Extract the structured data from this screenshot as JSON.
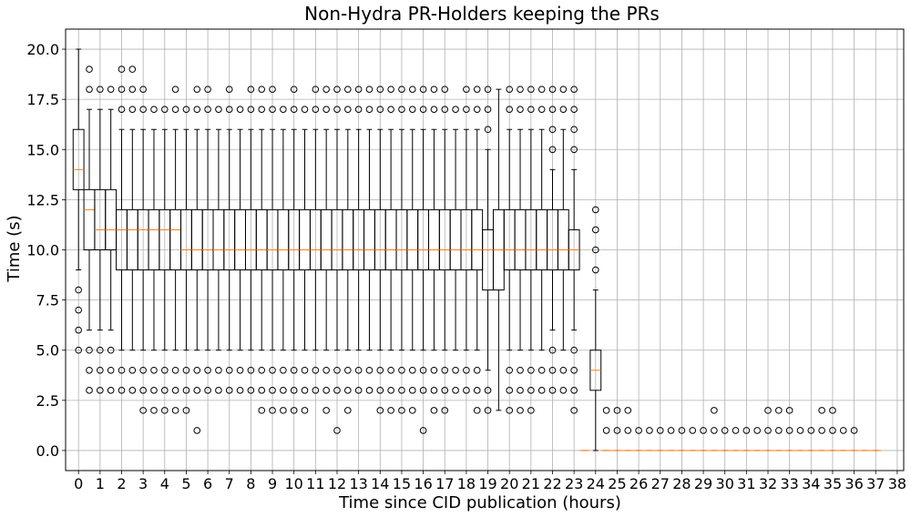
{
  "chart_data": {
    "type": "box",
    "title": "Non-Hydra PR-Holders keeping the PRs",
    "xlabel": "Time since CID publication (hours)",
    "ylabel": "Time (s)",
    "ylim": [
      -1,
      21
    ],
    "xlim": [
      -0.6,
      38.3
    ],
    "yticks": [
      0.0,
      2.5,
      5.0,
      7.5,
      10.0,
      12.5,
      15.0,
      17.5,
      20.0
    ],
    "ytick_labels": [
      "0.0",
      "2.5",
      "5.0",
      "7.5",
      "10.0",
      "12.5",
      "15.0",
      "17.5",
      "20.0"
    ],
    "xticks": [
      0,
      1,
      2,
      3,
      4,
      5,
      6,
      7,
      8,
      9,
      10,
      11,
      12,
      13,
      14,
      15,
      16,
      17,
      18,
      19,
      20,
      21,
      22,
      23,
      24,
      25,
      26,
      27,
      28,
      29,
      30,
      31,
      32,
      33,
      34,
      35,
      36,
      37,
      38
    ],
    "xtick_labels": [
      "0",
      "1",
      "2",
      "3",
      "4",
      "5",
      "6",
      "7",
      "8",
      "9",
      "10",
      "11",
      "12",
      "13",
      "14",
      "15",
      "16",
      "17",
      "18",
      "19",
      "20",
      "21",
      "22",
      "23",
      "24",
      "25",
      "26",
      "27",
      "28",
      "29",
      "30",
      "31",
      "32",
      "33",
      "34",
      "35",
      "36",
      "37",
      "38"
    ],
    "grid": true,
    "box_step_hours": 0.5,
    "colors": {
      "box": "#000000",
      "median": "#ff7f0e",
      "grid": "#b0b0b0",
      "flier": "#000000"
    },
    "boxes": [
      {
        "q1": 13,
        "median": 14,
        "q3": 16,
        "whislo": 9,
        "whishi": 20,
        "fliers": [
          8,
          7,
          6,
          5
        ]
      },
      {
        "q1": 10,
        "median": 12,
        "q3": 13,
        "whislo": 6,
        "whishi": 17,
        "fliers": [
          19,
          18,
          5,
          4,
          3
        ]
      },
      {
        "q1": 10,
        "median": 11,
        "q3": 13,
        "whislo": 6,
        "whishi": 17,
        "fliers": [
          18,
          5,
          4,
          3
        ]
      },
      {
        "q1": 10,
        "median": 11,
        "q3": 13,
        "whislo": 6,
        "whishi": 17,
        "fliers": [
          18,
          5,
          4,
          3
        ]
      },
      {
        "q1": 9,
        "median": 11,
        "q3": 12,
        "whislo": 5,
        "whishi": 16,
        "fliers": [
          19,
          18,
          17,
          4,
          3
        ]
      },
      {
        "q1": 9,
        "median": 11,
        "q3": 12,
        "whislo": 5,
        "whishi": 16,
        "fliers": [
          19,
          18,
          17,
          4,
          3
        ]
      },
      {
        "q1": 9,
        "median": 11,
        "q3": 12,
        "whislo": 5,
        "whishi": 16,
        "fliers": [
          18,
          17,
          4,
          3,
          2
        ]
      },
      {
        "q1": 9,
        "median": 11,
        "q3": 12,
        "whislo": 5,
        "whishi": 16,
        "fliers": [
          17,
          4,
          3,
          2
        ]
      },
      {
        "q1": 9,
        "median": 11,
        "q3": 12,
        "whislo": 5,
        "whishi": 16,
        "fliers": [
          17,
          4,
          3,
          2
        ]
      },
      {
        "q1": 9,
        "median": 11,
        "q3": 12,
        "whislo": 5,
        "whishi": 16,
        "fliers": [
          18,
          17,
          4,
          3,
          2
        ]
      },
      {
        "q1": 9,
        "median": 10,
        "q3": 12,
        "whislo": 5,
        "whishi": 16,
        "fliers": [
          17,
          4,
          3,
          2
        ]
      },
      {
        "q1": 9,
        "median": 10,
        "q3": 12,
        "whislo": 5,
        "whishi": 16,
        "fliers": [
          18,
          17,
          4,
          3,
          1
        ]
      },
      {
        "q1": 9,
        "median": 10,
        "q3": 12,
        "whislo": 5,
        "whishi": 16,
        "fliers": [
          18,
          17,
          4,
          3
        ]
      },
      {
        "q1": 9,
        "median": 10,
        "q3": 12,
        "whislo": 5,
        "whishi": 16,
        "fliers": [
          17,
          4,
          3
        ]
      },
      {
        "q1": 9,
        "median": 10,
        "q3": 12,
        "whislo": 5,
        "whishi": 16,
        "fliers": [
          18,
          17,
          4,
          3
        ]
      },
      {
        "q1": 9,
        "median": 10,
        "q3": 12,
        "whislo": 5,
        "whishi": 16,
        "fliers": [
          17,
          4,
          3
        ]
      },
      {
        "q1": 9,
        "median": 10,
        "q3": 12,
        "whislo": 5,
        "whishi": 16,
        "fliers": [
          18,
          17,
          4,
          3
        ]
      },
      {
        "q1": 9,
        "median": 10,
        "q3": 12,
        "whislo": 5,
        "whishi": 16,
        "fliers": [
          18,
          17,
          4,
          3,
          2
        ]
      },
      {
        "q1": 9,
        "median": 10,
        "q3": 12,
        "whislo": 5,
        "whishi": 16,
        "fliers": [
          18,
          17,
          4,
          3,
          2
        ]
      },
      {
        "q1": 9,
        "median": 10,
        "q3": 12,
        "whislo": 5,
        "whishi": 16,
        "fliers": [
          17,
          4,
          3,
          2
        ]
      },
      {
        "q1": 9,
        "median": 10,
        "q3": 12,
        "whislo": 5,
        "whishi": 16,
        "fliers": [
          18,
          17,
          4,
          3,
          2
        ]
      },
      {
        "q1": 9,
        "median": 10,
        "q3": 12,
        "whislo": 5,
        "whishi": 16,
        "fliers": [
          17,
          4,
          3,
          2
        ]
      },
      {
        "q1": 9,
        "median": 10,
        "q3": 12,
        "whislo": 5,
        "whishi": 16,
        "fliers": [
          18,
          17,
          4,
          3
        ]
      },
      {
        "q1": 9,
        "median": 10,
        "q3": 12,
        "whislo": 5,
        "whishi": 16,
        "fliers": [
          18,
          17,
          4,
          3,
          2
        ]
      },
      {
        "q1": 9,
        "median": 10,
        "q3": 12,
        "whislo": 5,
        "whishi": 16,
        "fliers": [
          18,
          17,
          4,
          3,
          1
        ]
      },
      {
        "q1": 9,
        "median": 10,
        "q3": 12,
        "whislo": 5,
        "whishi": 16,
        "fliers": [
          18,
          17,
          4,
          3,
          2
        ]
      },
      {
        "q1": 9,
        "median": 10,
        "q3": 12,
        "whislo": 5,
        "whishi": 16,
        "fliers": [
          18,
          17,
          4,
          3
        ]
      },
      {
        "q1": 9,
        "median": 10,
        "q3": 12,
        "whislo": 5,
        "whishi": 16,
        "fliers": [
          18,
          17,
          4,
          3
        ]
      },
      {
        "q1": 9,
        "median": 10,
        "q3": 12,
        "whislo": 5,
        "whishi": 16,
        "fliers": [
          18,
          17,
          4,
          3,
          2
        ]
      },
      {
        "q1": 9,
        "median": 10,
        "q3": 12,
        "whislo": 5,
        "whishi": 16,
        "fliers": [
          18,
          17,
          4,
          3,
          2
        ]
      },
      {
        "q1": 9,
        "median": 10,
        "q3": 12,
        "whislo": 5,
        "whishi": 16,
        "fliers": [
          18,
          17,
          4,
          3,
          2
        ]
      },
      {
        "q1": 9,
        "median": 10,
        "q3": 12,
        "whislo": 5,
        "whishi": 16,
        "fliers": [
          18,
          17,
          4,
          3,
          2
        ]
      },
      {
        "q1": 9,
        "median": 10,
        "q3": 12,
        "whislo": 5,
        "whishi": 16,
        "fliers": [
          18,
          17,
          4,
          3,
          1
        ]
      },
      {
        "q1": 9,
        "median": 10,
        "q3": 12,
        "whislo": 5,
        "whishi": 16,
        "fliers": [
          18,
          17,
          4,
          3,
          2
        ]
      },
      {
        "q1": 9,
        "median": 10,
        "q3": 12,
        "whislo": 5,
        "whishi": 16,
        "fliers": [
          18,
          17,
          4,
          3,
          2
        ]
      },
      {
        "q1": 9,
        "median": 10,
        "q3": 12,
        "whislo": 5,
        "whishi": 16,
        "fliers": [
          17,
          4,
          3
        ]
      },
      {
        "q1": 9,
        "median": 10,
        "q3": 12,
        "whislo": 5,
        "whishi": 16,
        "fliers": [
          18,
          17,
          4,
          3
        ]
      },
      {
        "q1": 9,
        "median": 10,
        "q3": 12,
        "whislo": 5,
        "whishi": 16,
        "fliers": [
          18,
          17,
          4,
          3,
          2
        ]
      },
      {
        "q1": 8,
        "median": 10,
        "q3": 11,
        "whislo": 4,
        "whishi": 15,
        "fliers": [
          18,
          17,
          16,
          3,
          2
        ]
      },
      {
        "q1": 8,
        "median": 10,
        "q3": 12,
        "whislo": 2,
        "whishi": 18,
        "fliers": []
      },
      {
        "q1": 9,
        "median": 10,
        "q3": 12,
        "whislo": 5,
        "whishi": 16,
        "fliers": [
          18,
          17,
          4,
          3,
          2
        ]
      },
      {
        "q1": 9,
        "median": 10,
        "q3": 12,
        "whislo": 5,
        "whishi": 16,
        "fliers": [
          18,
          17,
          4,
          3,
          2
        ]
      },
      {
        "q1": 9,
        "median": 10,
        "q3": 12,
        "whislo": 5,
        "whishi": 16,
        "fliers": [
          18,
          17,
          4,
          3,
          2
        ]
      },
      {
        "q1": 9,
        "median": 10,
        "q3": 12,
        "whislo": 5,
        "whishi": 16,
        "fliers": [
          18,
          17,
          4,
          3
        ]
      },
      {
        "q1": 9,
        "median": 10,
        "q3": 12,
        "whislo": 6,
        "whishi": 14,
        "fliers": [
          18,
          17,
          16,
          15,
          5,
          4,
          3
        ]
      },
      {
        "q1": 9,
        "median": 10,
        "q3": 12,
        "whislo": 5,
        "whishi": 16,
        "fliers": [
          18,
          17,
          4,
          3
        ]
      },
      {
        "q1": 9,
        "median": 10,
        "q3": 11,
        "whislo": 6,
        "whishi": 14,
        "fliers": [
          18,
          17,
          16,
          15,
          5,
          4,
          3,
          2
        ]
      },
      {
        "q1": 0,
        "median": 0,
        "q3": 0,
        "whislo": 0,
        "whishi": 0,
        "fliers": []
      },
      {
        "q1": 3,
        "median": 4,
        "q3": 5,
        "whislo": 0,
        "whishi": 8,
        "fliers": [
          12,
          11,
          10,
          9
        ]
      },
      {
        "q1": 0,
        "median": 0,
        "q3": 0,
        "whislo": 0,
        "whishi": 0,
        "fliers": [
          2,
          1
        ]
      },
      {
        "q1": 0,
        "median": 0,
        "q3": 0,
        "whislo": 0,
        "whishi": 0,
        "fliers": [
          2,
          1
        ]
      },
      {
        "q1": 0,
        "median": 0,
        "q3": 0,
        "whislo": 0,
        "whishi": 0,
        "fliers": [
          2,
          1
        ]
      },
      {
        "q1": 0,
        "median": 0,
        "q3": 0,
        "whislo": 0,
        "whishi": 0,
        "fliers": [
          1
        ]
      },
      {
        "q1": 0,
        "median": 0,
        "q3": 0,
        "whislo": 0,
        "whishi": 0,
        "fliers": [
          1
        ]
      },
      {
        "q1": 0,
        "median": 0,
        "q3": 0,
        "whislo": 0,
        "whishi": 0,
        "fliers": [
          1
        ]
      },
      {
        "q1": 0,
        "median": 0,
        "q3": 0,
        "whislo": 0,
        "whishi": 0,
        "fliers": [
          1
        ]
      },
      {
        "q1": 0,
        "median": 0,
        "q3": 0,
        "whislo": 0,
        "whishi": 0,
        "fliers": [
          1
        ]
      },
      {
        "q1": 0,
        "median": 0,
        "q3": 0,
        "whislo": 0,
        "whishi": 0,
        "fliers": [
          1
        ]
      },
      {
        "q1": 0,
        "median": 0,
        "q3": 0,
        "whislo": 0,
        "whishi": 0,
        "fliers": [
          1
        ]
      },
      {
        "q1": 0,
        "median": 0,
        "q3": 0,
        "whislo": 0,
        "whishi": 0,
        "fliers": [
          2,
          1
        ]
      },
      {
        "q1": 0,
        "median": 0,
        "q3": 0,
        "whislo": 0,
        "whishi": 0,
        "fliers": [
          1
        ]
      },
      {
        "q1": 0,
        "median": 0,
        "q3": 0,
        "whislo": 0,
        "whishi": 0,
        "fliers": [
          1
        ]
      },
      {
        "q1": 0,
        "median": 0,
        "q3": 0,
        "whislo": 0,
        "whishi": 0,
        "fliers": [
          1
        ]
      },
      {
        "q1": 0,
        "median": 0,
        "q3": 0,
        "whislo": 0,
        "whishi": 0,
        "fliers": [
          1
        ]
      },
      {
        "q1": 0,
        "median": 0,
        "q3": 0,
        "whislo": 0,
        "whishi": 0,
        "fliers": [
          2,
          1
        ]
      },
      {
        "q1": 0,
        "median": 0,
        "q3": 0,
        "whislo": 0,
        "whishi": 0,
        "fliers": [
          2,
          1
        ]
      },
      {
        "q1": 0,
        "median": 0,
        "q3": 0,
        "whislo": 0,
        "whishi": 0,
        "fliers": [
          2,
          1
        ]
      },
      {
        "q1": 0,
        "median": 0,
        "q3": 0,
        "whislo": 0,
        "whishi": 0,
        "fliers": [
          1
        ]
      },
      {
        "q1": 0,
        "median": 0,
        "q3": 0,
        "whislo": 0,
        "whishi": 0,
        "fliers": [
          1
        ]
      },
      {
        "q1": 0,
        "median": 0,
        "q3": 0,
        "whislo": 0,
        "whishi": 0,
        "fliers": [
          2,
          1
        ]
      },
      {
        "q1": 0,
        "median": 0,
        "q3": 0,
        "whislo": 0,
        "whishi": 0,
        "fliers": [
          2,
          1
        ]
      },
      {
        "q1": 0,
        "median": 0,
        "q3": 0,
        "whislo": 0,
        "whishi": 0,
        "fliers": [
          1
        ]
      },
      {
        "q1": 0,
        "median": 0,
        "q3": 0,
        "whislo": 0,
        "whishi": 0,
        "fliers": [
          1
        ]
      },
      {
        "q1": 0,
        "median": 0,
        "q3": 0,
        "whislo": 0,
        "whishi": 0,
        "fliers": []
      },
      {
        "q1": 0,
        "median": 0,
        "q3": 0,
        "whislo": 0,
        "whishi": 0,
        "fliers": []
      }
    ]
  }
}
